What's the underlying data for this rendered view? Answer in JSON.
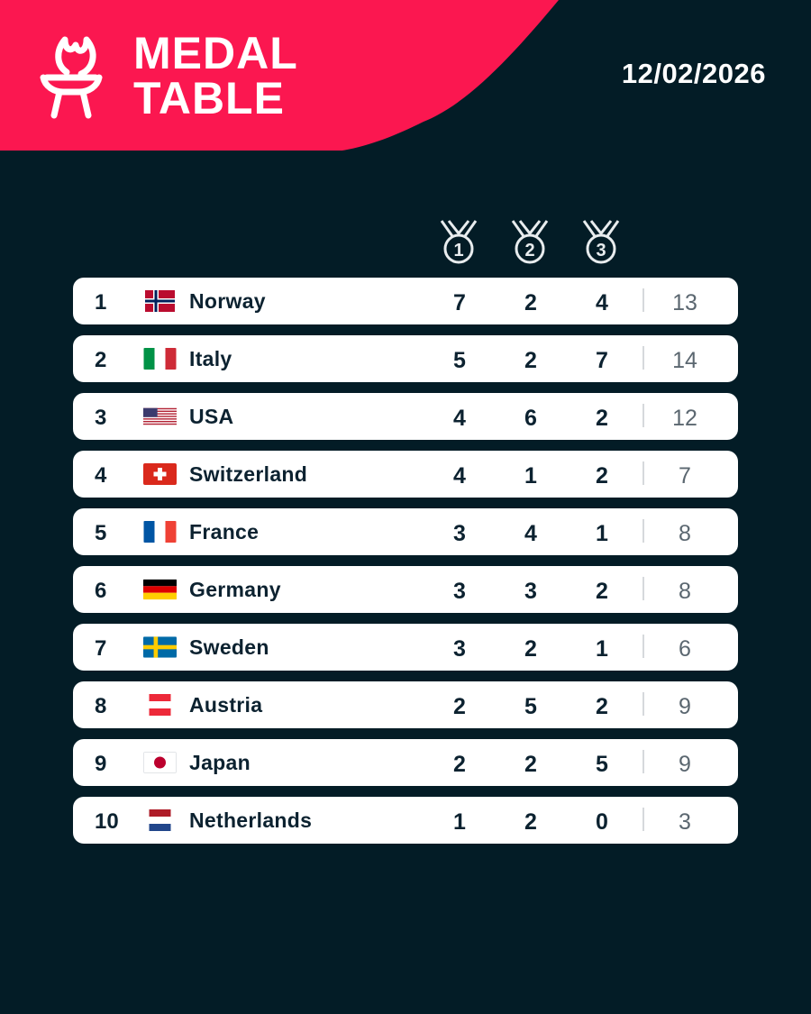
{
  "header": {
    "title_line1": "MEDAL",
    "title_line2": "TABLE",
    "date": "12/02/2026",
    "accent_color": "#fb1750"
  },
  "columns": {
    "gold_icon": "medal-1-icon",
    "silver_icon": "medal-2-icon",
    "bronze_icon": "medal-3-icon",
    "gold_numeral": "1",
    "silver_numeral": "2",
    "bronze_numeral": "3"
  },
  "rows": [
    {
      "rank": "1",
      "flag": "norway-flag-icon",
      "country": "Norway",
      "gold": "7",
      "silver": "2",
      "bronze": "4",
      "total": "13"
    },
    {
      "rank": "2",
      "flag": "italy-flag-icon",
      "country": "Italy",
      "gold": "5",
      "silver": "2",
      "bronze": "7",
      "total": "14"
    },
    {
      "rank": "3",
      "flag": "usa-flag-icon",
      "country": "USA",
      "gold": "4",
      "silver": "6",
      "bronze": "2",
      "total": "12"
    },
    {
      "rank": "4",
      "flag": "switzerland-flag-icon",
      "country": "Switzerland",
      "gold": "4",
      "silver": "1",
      "bronze": "2",
      "total": "7"
    },
    {
      "rank": "5",
      "flag": "france-flag-icon",
      "country": "France",
      "gold": "3",
      "silver": "4",
      "bronze": "1",
      "total": "8"
    },
    {
      "rank": "6",
      "flag": "germany-flag-icon",
      "country": "Germany",
      "gold": "3",
      "silver": "3",
      "bronze": "2",
      "total": "8"
    },
    {
      "rank": "7",
      "flag": "sweden-flag-icon",
      "country": "Sweden",
      "gold": "3",
      "silver": "2",
      "bronze": "1",
      "total": "6"
    },
    {
      "rank": "8",
      "flag": "austria-flag-icon",
      "country": "Austria",
      "gold": "2",
      "silver": "5",
      "bronze": "2",
      "total": "9"
    },
    {
      "rank": "9",
      "flag": "japan-flag-icon",
      "country": "Japan",
      "gold": "2",
      "silver": "2",
      "bronze": "5",
      "total": "9"
    },
    {
      "rank": "10",
      "flag": "netherlands-flag-icon",
      "country": "Netherlands",
      "gold": "1",
      "silver": "2",
      "bronze": "0",
      "total": "3"
    }
  ]
}
